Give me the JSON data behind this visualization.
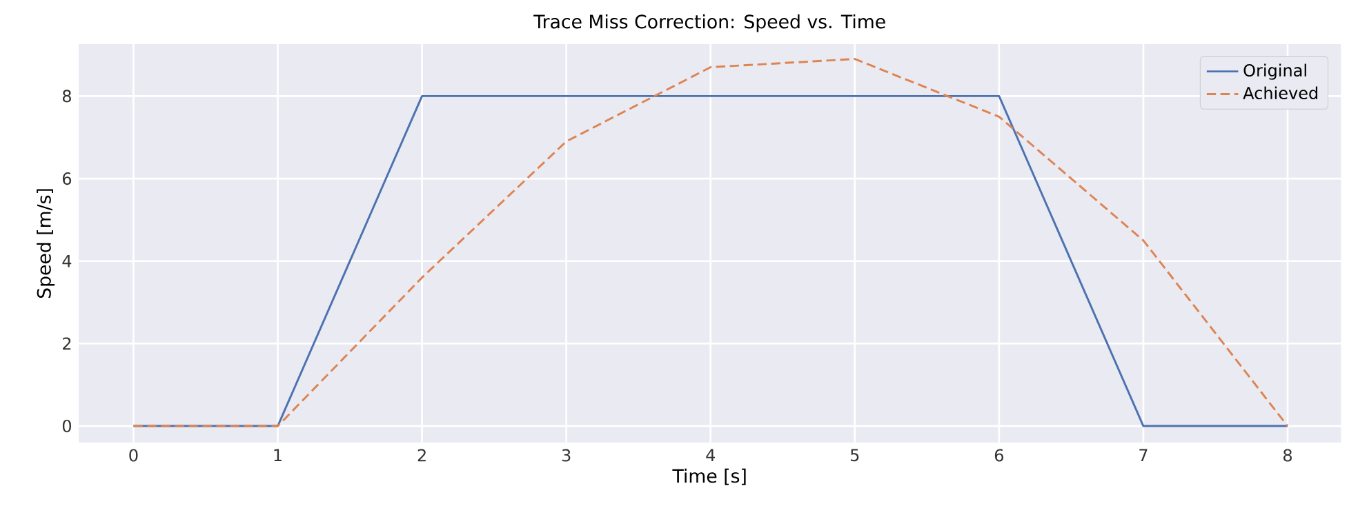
{
  "chart_data": {
    "type": "line",
    "title": "Trace Miss Correction: Speed vs. Time",
    "xlabel": "Time [s]",
    "ylabel": "Speed [m/s]",
    "x": [
      0,
      1,
      2,
      3,
      4,
      5,
      6,
      7,
      8
    ],
    "series": [
      {
        "name": "Original",
        "color": "#4c72b0",
        "line_style": "solid",
        "values": [
          0,
          0,
          8,
          8,
          8,
          8,
          8,
          0,
          0
        ]
      },
      {
        "name": "Achieved",
        "color": "#dd8452",
        "line_style": "dashed",
        "values": [
          0,
          0,
          3.6,
          6.9,
          8.7,
          8.9,
          7.5,
          4.5,
          0
        ]
      }
    ],
    "xlim": [
      -0.38,
      8.37
    ],
    "ylim": [
      -0.4,
      9.26
    ],
    "xticks": [
      0,
      1,
      2,
      3,
      4,
      5,
      6,
      7,
      8
    ],
    "yticks": [
      0,
      2,
      4,
      6,
      8
    ],
    "grid": true,
    "legend": "top right",
    "marker": "none"
  }
}
